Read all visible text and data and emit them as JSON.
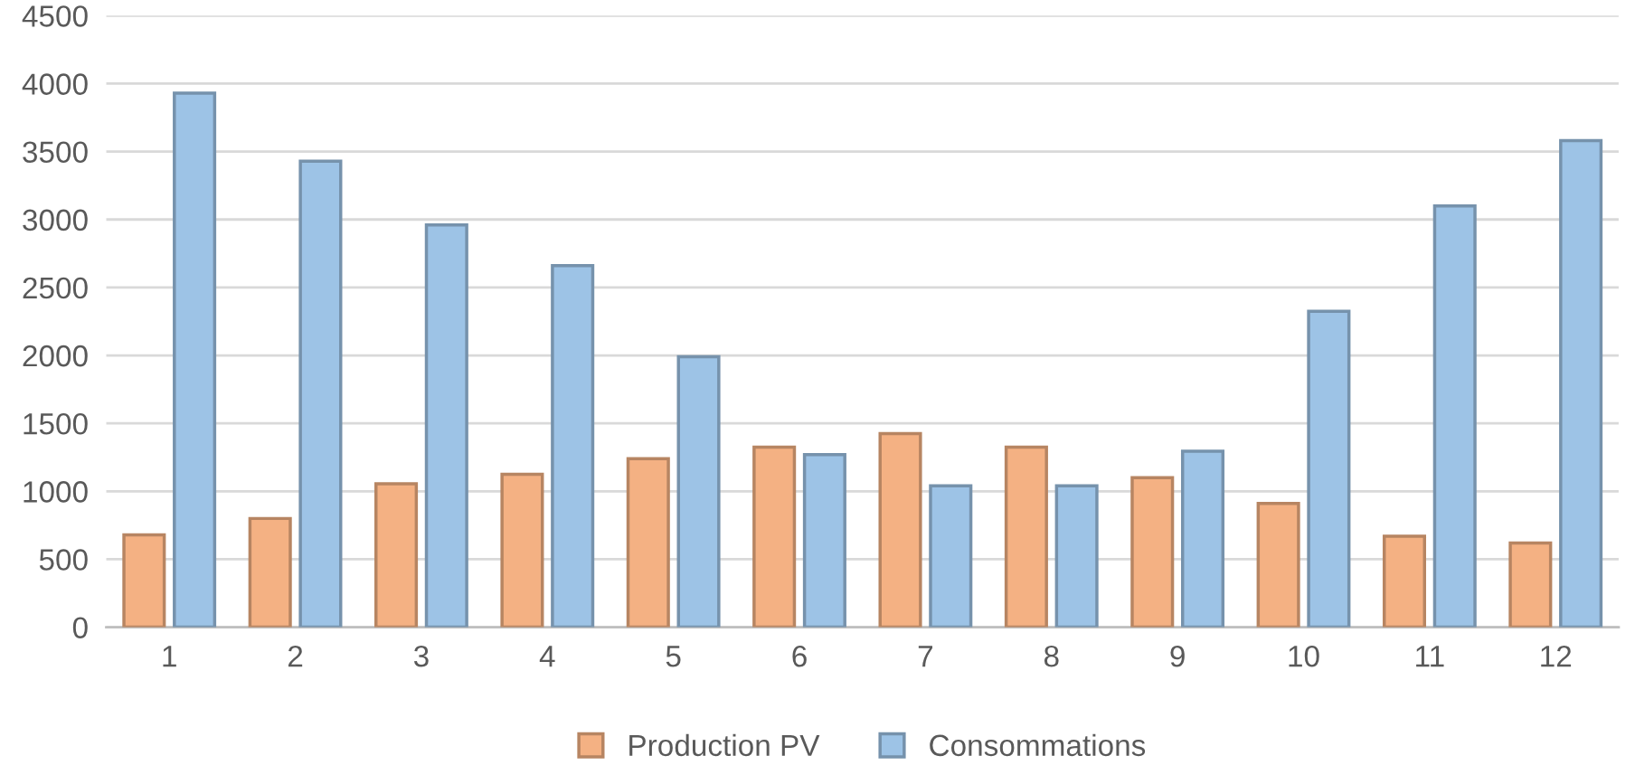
{
  "chart_data": {
    "type": "bar",
    "categories": [
      "1",
      "2",
      "3",
      "4",
      "5",
      "6",
      "7",
      "8",
      "9",
      "10",
      "11",
      "12"
    ],
    "series": [
      {
        "name": "Production PV",
        "color": "#f4b183",
        "values": [
          680,
          800,
          1055,
          1125,
          1240,
          1325,
          1425,
          1325,
          1100,
          910,
          670,
          620
        ]
      },
      {
        "name": "Consommations",
        "color": "#9dc3e6",
        "values": [
          3930,
          3430,
          2960,
          2660,
          1990,
          1270,
          1040,
          1040,
          1295,
          2325,
          3100,
          3580
        ]
      }
    ],
    "ylim": [
      0,
      4500
    ],
    "yticks": [
      0,
      500,
      1000,
      1500,
      2000,
      2500,
      3000,
      3500,
      4000,
      4500
    ],
    "grid": "y",
    "legend": "bottom"
  }
}
